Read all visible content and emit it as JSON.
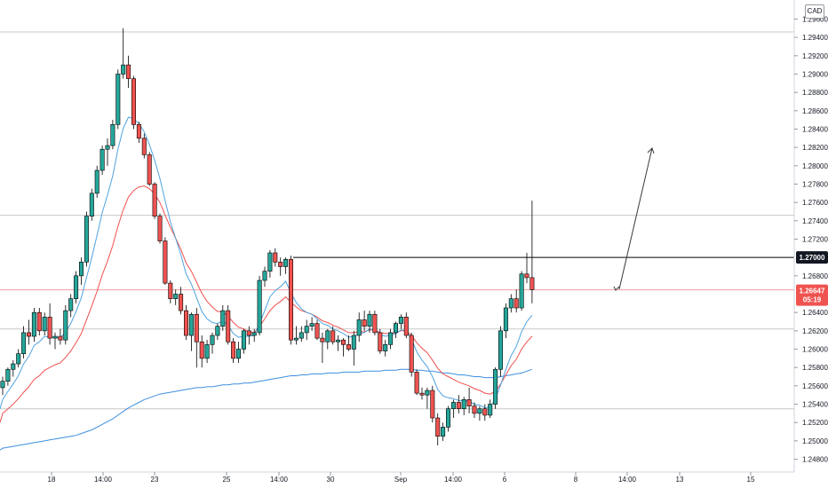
{
  "currency": "CAD",
  "colors": {
    "up": "#26a69a",
    "down": "#ef5350",
    "ema_fast": "#4fa3e0",
    "ema_slow": "#f0504f",
    "ema_long": "#3d8fe0",
    "resistance": "#000000",
    "current_price_line": "#f0a0a0",
    "gridline": "#c8c8c8"
  },
  "price_badges": [
    {
      "value": "1.27000",
      "style": "dark"
    },
    {
      "value": "1.26647",
      "sub": "05:19",
      "style": "red"
    }
  ],
  "chart_data": {
    "type": "candlestick",
    "ylim": [
      1.2466,
      1.298
    ],
    "y_ticks": [
      "1.29600",
      "1.29400",
      "1.29200",
      "1.29000",
      "1.28800",
      "1.28600",
      "1.28400",
      "1.28200",
      "1.28000",
      "1.27800",
      "1.27600",
      "1.27400",
      "1.27200",
      "1.26800",
      "1.26400",
      "1.26200",
      "1.26000",
      "1.25800",
      "1.25600",
      "1.25400",
      "1.25200",
      "1.25000",
      "1.24800"
    ],
    "x_ticks": [
      "18",
      "14:00",
      "23",
      "25",
      "14:00",
      "30",
      "Sep",
      "14:00",
      "6",
      "8",
      "14:00",
      "13",
      "15"
    ],
    "resistance_level": 1.27,
    "current_price": 1.26647,
    "horizontal_lines": [
      1.2946,
      1.2746,
      1.2622,
      1.2535
    ],
    "candles": [
      [
        1.2558,
        1.257,
        1.255,
        1.2565
      ],
      [
        1.2565,
        1.258,
        1.256,
        1.2578
      ],
      [
        1.2578,
        1.2588,
        1.257,
        1.2584
      ],
      [
        1.2584,
        1.26,
        1.258,
        1.2595
      ],
      [
        1.2595,
        1.2625,
        1.259,
        1.2618
      ],
      [
        1.2618,
        1.2632,
        1.2605,
        1.2614
      ],
      [
        1.2614,
        1.2645,
        1.2608,
        1.264
      ],
      [
        1.264,
        1.2645,
        1.2615,
        1.262
      ],
      [
        1.262,
        1.264,
        1.2615,
        1.2635
      ],
      [
        1.2635,
        1.265,
        1.2605,
        1.2612
      ],
      [
        1.2612,
        1.2618,
        1.26,
        1.2614
      ],
      [
        1.2614,
        1.2622,
        1.2605,
        1.261
      ],
      [
        1.261,
        1.2648,
        1.2605,
        1.2642
      ],
      [
        1.2642,
        1.266,
        1.2635,
        1.2655
      ],
      [
        1.2655,
        1.2685,
        1.265,
        1.268
      ],
      [
        1.268,
        1.27,
        1.267,
        1.2695
      ],
      [
        1.2695,
        1.275,
        1.269,
        1.2745
      ],
      [
        1.2745,
        1.2775,
        1.274,
        1.277
      ],
      [
        1.277,
        1.28,
        1.2765,
        1.2795
      ],
      [
        1.2795,
        1.2822,
        1.279,
        1.2818
      ],
      [
        1.2818,
        1.283,
        1.28,
        1.2822
      ],
      [
        1.2822,
        1.285,
        1.2818,
        1.2845
      ],
      [
        1.2845,
        1.2905,
        1.284,
        1.29
      ],
      [
        1.29,
        1.295,
        1.2895,
        1.291
      ],
      [
        1.291,
        1.292,
        1.2885,
        1.2895
      ],
      [
        1.2895,
        1.2898,
        1.284,
        1.2845
      ],
      [
        1.2845,
        1.2848,
        1.2825,
        1.283
      ],
      [
        1.283,
        1.2835,
        1.2808,
        1.2812
      ],
      [
        1.2812,
        1.2815,
        1.2778,
        1.278
      ],
      [
        1.278,
        1.2782,
        1.2742,
        1.2745
      ],
      [
        1.2745,
        1.2748,
        1.2715,
        1.2718
      ],
      [
        1.2718,
        1.2722,
        1.267,
        1.2672
      ],
      [
        1.2672,
        1.2675,
        1.265,
        1.2655
      ],
      [
        1.2655,
        1.2665,
        1.2648,
        1.266
      ],
      [
        1.266,
        1.2668,
        1.2638,
        1.2642
      ],
      [
        1.2642,
        1.2648,
        1.261,
        1.2615
      ],
      [
        1.2615,
        1.264,
        1.2598,
        1.2638
      ],
      [
        1.2638,
        1.2645,
        1.258,
        1.2608
      ],
      [
        1.2608,
        1.2615,
        1.258,
        1.259
      ],
      [
        1.259,
        1.261,
        1.2585,
        1.2605
      ],
      [
        1.2605,
        1.2618,
        1.2595,
        1.2615
      ],
      [
        1.2615,
        1.2628,
        1.261,
        1.2625
      ],
      [
        1.2625,
        1.2648,
        1.262,
        1.2642
      ],
      [
        1.2642,
        1.2648,
        1.2605,
        1.2608
      ],
      [
        1.2608,
        1.2612,
        1.2585,
        1.259
      ],
      [
        1.259,
        1.2608,
        1.2585,
        1.26
      ],
      [
        1.26,
        1.2622,
        1.2595,
        1.262
      ],
      [
        1.262,
        1.2625,
        1.2605,
        1.2615
      ],
      [
        1.2615,
        1.2622,
        1.2608,
        1.2618
      ],
      [
        1.2618,
        1.268,
        1.2615,
        1.2675
      ],
      [
        1.2675,
        1.269,
        1.2668,
        1.2685
      ],
      [
        1.2685,
        1.2708,
        1.2678,
        1.2705
      ],
      [
        1.2705,
        1.271,
        1.269,
        1.2695
      ],
      [
        1.2695,
        1.27,
        1.268,
        1.269
      ],
      [
        1.269,
        1.27,
        1.2682,
        1.2698
      ],
      [
        1.2698,
        1.2702,
        1.2605,
        1.261
      ],
      [
        1.261,
        1.2625,
        1.2605,
        1.2612
      ],
      [
        1.2612,
        1.2625,
        1.2608,
        1.2618
      ],
      [
        1.2618,
        1.2632,
        1.261,
        1.2625
      ],
      [
        1.2625,
        1.2635,
        1.262,
        1.2628
      ],
      [
        1.2628,
        1.2632,
        1.261,
        1.2612
      ],
      [
        1.2612,
        1.2618,
        1.2585,
        1.2608
      ],
      [
        1.2608,
        1.2622,
        1.26,
        1.262
      ],
      [
        1.262,
        1.2625,
        1.2605,
        1.2608
      ],
      [
        1.2608,
        1.2615,
        1.2598,
        1.261
      ],
      [
        1.261,
        1.2612,
        1.2592,
        1.2605
      ],
      [
        1.2605,
        1.2615,
        1.2598,
        1.26
      ],
      [
        1.26,
        1.262,
        1.2582,
        1.2615
      ],
      [
        1.2615,
        1.264,
        1.2608,
        1.2632
      ],
      [
        1.2632,
        1.2642,
        1.262,
        1.2625
      ],
      [
        1.2625,
        1.2642,
        1.2618,
        1.2638
      ],
      [
        1.2638,
        1.2642,
        1.2615,
        1.2618
      ],
      [
        1.2618,
        1.2622,
        1.2595,
        1.2598
      ],
      [
        1.2598,
        1.261,
        1.2592,
        1.2605
      ],
      [
        1.2605,
        1.2622,
        1.26,
        1.2618
      ],
      [
        1.2618,
        1.263,
        1.2612,
        1.2628
      ],
      [
        1.2628,
        1.2638,
        1.2622,
        1.2635
      ],
      [
        1.2635,
        1.264,
        1.2612,
        1.2615
      ],
      [
        1.2615,
        1.2618,
        1.257,
        1.2575
      ],
      [
        1.2575,
        1.2578,
        1.255,
        1.2552
      ],
      [
        1.2552,
        1.2558,
        1.2545,
        1.255
      ],
      [
        1.255,
        1.2558,
        1.2535,
        1.2555
      ],
      [
        1.2555,
        1.256,
        1.252,
        1.2525
      ],
      [
        1.2525,
        1.253,
        1.2495,
        1.2505
      ],
      [
        1.2505,
        1.252,
        1.25,
        1.2515
      ],
      [
        1.2515,
        1.2538,
        1.251,
        1.2535
      ],
      [
        1.2535,
        1.2545,
        1.2525,
        1.2542
      ],
      [
        1.2542,
        1.255,
        1.253,
        1.2535
      ],
      [
        1.2535,
        1.2548,
        1.2528,
        1.2545
      ],
      [
        1.2545,
        1.2558,
        1.253,
        1.2538
      ],
      [
        1.2538,
        1.2542,
        1.2525,
        1.253
      ],
      [
        1.253,
        1.2538,
        1.2522,
        1.2535
      ],
      [
        1.2535,
        1.254,
        1.2522,
        1.2528
      ],
      [
        1.2528,
        1.2545,
        1.2525,
        1.254
      ],
      [
        1.254,
        1.258,
        1.2535,
        1.2578
      ],
      [
        1.2578,
        1.2625,
        1.257,
        1.262
      ],
      [
        1.262,
        1.265,
        1.2612,
        1.2645
      ],
      [
        1.2645,
        1.266,
        1.264,
        1.2655
      ],
      [
        1.2655,
        1.2665,
        1.264,
        1.2645
      ],
      [
        1.2645,
        1.2685,
        1.2642,
        1.2682
      ],
      [
        1.2682,
        1.2705,
        1.2672,
        1.2678
      ],
      [
        1.2678,
        1.2762,
        1.265,
        1.2665
      ]
    ],
    "ema_fast": [
      1.2545,
      1.2554,
      1.2562,
      1.2571,
      1.2584,
      1.2592,
      1.2604,
      1.2608,
      1.2614,
      1.2613,
      1.2613,
      1.2612,
      1.2619,
      1.2628,
      1.2641,
      1.2656,
      1.2678,
      1.27,
      1.2724,
      1.2749,
      1.2768,
      1.2789,
      1.2818,
      1.2841,
      1.2853,
      1.2851,
      1.2846,
      1.2837,
      1.2823,
      1.2806,
      1.2786,
      1.2762,
      1.2739,
      1.2721,
      1.2703,
      1.2682,
      1.2671,
      1.2656,
      1.2641,
      1.2633,
      1.2629,
      1.2628,
      1.2631,
      1.2626,
      1.2617,
      1.2613,
      1.2614,
      1.2614,
      1.2615,
      1.2628,
      1.2642,
      1.2657,
      1.2664,
      1.2668,
      1.2674,
      1.2661,
      1.2651,
      1.2644,
      1.264,
      1.2638,
      1.2633,
      1.2628,
      1.2626,
      1.2622,
      1.262,
      1.2617,
      1.2613,
      1.2614,
      1.2617,
      1.2618,
      1.2622,
      1.2621,
      1.2616,
      1.2614,
      1.2615,
      1.2617,
      1.2621,
      1.262,
      1.2611,
      1.2597,
      1.2588,
      1.2581,
      1.257,
      1.2556,
      1.2549,
      1.2547,
      1.2546,
      1.2544,
      1.2544,
      1.2543,
      1.254,
      1.2539,
      1.2536,
      1.2537,
      1.2546,
      1.2561,
      1.2578,
      1.2593,
      1.2603,
      1.2619,
      1.263,
      1.2637
    ],
    "ema_slow": [
      1.253,
      1.2535,
      1.254,
      1.2546,
      1.2553,
      1.2559,
      1.2567,
      1.2571,
      1.2577,
      1.258,
      1.2583,
      1.2585,
      1.2591,
      1.2598,
      1.2607,
      1.2617,
      1.2632,
      1.2647,
      1.2663,
      1.2681,
      1.2696,
      1.2713,
      1.2734,
      1.2752,
      1.2766,
      1.2773,
      1.2777,
      1.2778,
      1.2775,
      1.2769,
      1.276,
      1.2746,
      1.2733,
      1.2721,
      1.2709,
      1.2694,
      1.2685,
      1.2673,
      1.2661,
      1.2652,
      1.2646,
      1.2641,
      1.2641,
      1.2636,
      1.2629,
      1.2624,
      1.2622,
      1.2619,
      1.2618,
      1.2625,
      1.2633,
      1.2642,
      1.2648,
      1.2652,
      1.2657,
      1.2651,
      1.2646,
      1.2642,
      1.264,
      1.2638,
      1.2635,
      1.2631,
      1.2629,
      1.2626,
      1.2624,
      1.2621,
      1.2618,
      1.2618,
      1.2619,
      1.2619,
      1.2621,
      1.2621,
      1.2618,
      1.2617,
      1.2617,
      1.2618,
      1.262,
      1.262,
      1.2615,
      1.2607,
      1.2601,
      1.2596,
      1.2588,
      1.2579,
      1.2573,
      1.257,
      1.2567,
      1.2564,
      1.2562,
      1.256,
      1.2557,
      1.2555,
      1.2552,
      1.2551,
      1.2554,
      1.2562,
      1.2572,
      1.2582,
      1.2589,
      1.26,
      1.2608,
      1.2614
    ],
    "ema_long": [
      1.2492,
      1.2493,
      1.2494,
      1.2495,
      1.2496,
      1.2497,
      1.2498,
      1.2499,
      1.25,
      1.2501,
      1.2502,
      1.2503,
      1.2504,
      1.2505,
      1.2506,
      1.2508,
      1.251,
      1.2512,
      1.2515,
      1.2518,
      1.2521,
      1.2524,
      1.2528,
      1.2532,
      1.2536,
      1.2539,
      1.2542,
      1.2545,
      1.2547,
      1.2549,
      1.2551,
      1.2552,
      1.2553,
      1.2554,
      1.2555,
      1.2556,
      1.2557,
      1.2558,
      1.2558,
      1.2559,
      1.2559,
      1.256,
      1.2561,
      1.2561,
      1.2562,
      1.2562,
      1.2563,
      1.2563,
      1.2564,
      1.2565,
      1.2566,
      1.2567,
      1.2568,
      1.2569,
      1.257,
      1.2571,
      1.2571,
      1.2572,
      1.2572,
      1.2573,
      1.2573,
      1.2573,
      1.2574,
      1.2574,
      1.2574,
      1.2575,
      1.2575,
      1.2575,
      1.2575,
      1.2576,
      1.2576,
      1.2576,
      1.2576,
      1.2577,
      1.2577,
      1.2577,
      1.2578,
      1.2578,
      1.2578,
      1.2577,
      1.2577,
      1.2576,
      1.2576,
      1.2575,
      1.2574,
      1.2574,
      1.2573,
      1.2572,
      1.2572,
      1.2571,
      1.257,
      1.257,
      1.2569,
      1.2569,
      1.2569,
      1.257,
      1.2571,
      1.2572,
      1.2573,
      1.2574,
      1.2576,
      1.2578
    ]
  }
}
